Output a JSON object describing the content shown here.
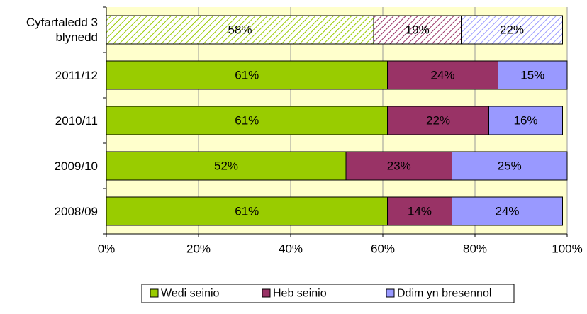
{
  "chart_data": {
    "type": "stacked_barh",
    "categories": [
      "Cyfartaledd 3 blynedd",
      "2011/12",
      "2010/11",
      "2009/10",
      "2008/09"
    ],
    "hatch": [
      true,
      false,
      false,
      false,
      false
    ],
    "series": [
      {
        "name": "Wedi seinio",
        "color": "#99cc00",
        "values": [
          58,
          61,
          61,
          52,
          61
        ],
        "value_labels": [
          "58%",
          "61%",
          "61%",
          "52%",
          "61%"
        ]
      },
      {
        "name": "Heb seinio",
        "color": "#993366",
        "values": [
          19,
          24,
          22,
          23,
          14
        ],
        "value_labels": [
          "19%",
          "24%",
          "22%",
          "23%",
          "14%"
        ]
      },
      {
        "name": "Ddim yn bresennol",
        "color": "#9999ff",
        "values": [
          22,
          15,
          16,
          25,
          24
        ],
        "value_labels": [
          "22%",
          "15%",
          "16%",
          "25%",
          "24%"
        ]
      }
    ],
    "xlim": [
      0,
      100
    ],
    "xticks": [
      {
        "value": 0,
        "label": "0%"
      },
      {
        "value": 20,
        "label": "20%"
      },
      {
        "value": 40,
        "label": "40%"
      },
      {
        "value": 60,
        "label": "60%"
      },
      {
        "value": 80,
        "label": "80%"
      },
      {
        "value": 100,
        "label": "100%"
      }
    ],
    "grid": true
  }
}
